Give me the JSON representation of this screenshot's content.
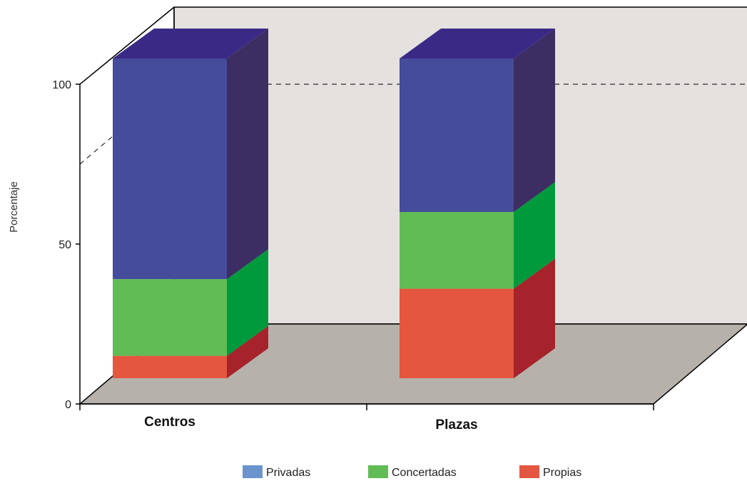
{
  "chart_data": {
    "type": "bar",
    "stacked": true,
    "three_d": true,
    "categories": [
      "Centros",
      "Plazas"
    ],
    "series": [
      {
        "name": "Propias",
        "values": [
          7,
          28
        ]
      },
      {
        "name": "Concertadas",
        "values": [
          24,
          24
        ]
      },
      {
        "name": "Privadas",
        "values": [
          69,
          48
        ]
      }
    ],
    "ylabel": "Porcentaje",
    "xlabel": "",
    "ylim": [
      0,
      100
    ],
    "yticks": [
      0,
      50,
      100
    ],
    "gridline_dashed_at": 75,
    "legend_position": "bottom",
    "legend_order": [
      "Privadas",
      "Concertadas",
      "Propias"
    ]
  },
  "colors": {
    "Propias": {
      "front": "#e55640",
      "side": "#a6232c"
    },
    "Concertadas": {
      "front": "#62bc56",
      "side": "#009a3c"
    },
    "Privadas": {
      "front": "#454c9b",
      "side": "#3c2d62",
      "top": "#3a2a86",
      "legend": "#6b93cc"
    },
    "back_wall": "#e5e1df",
    "floor": "#b6b1ab"
  }
}
